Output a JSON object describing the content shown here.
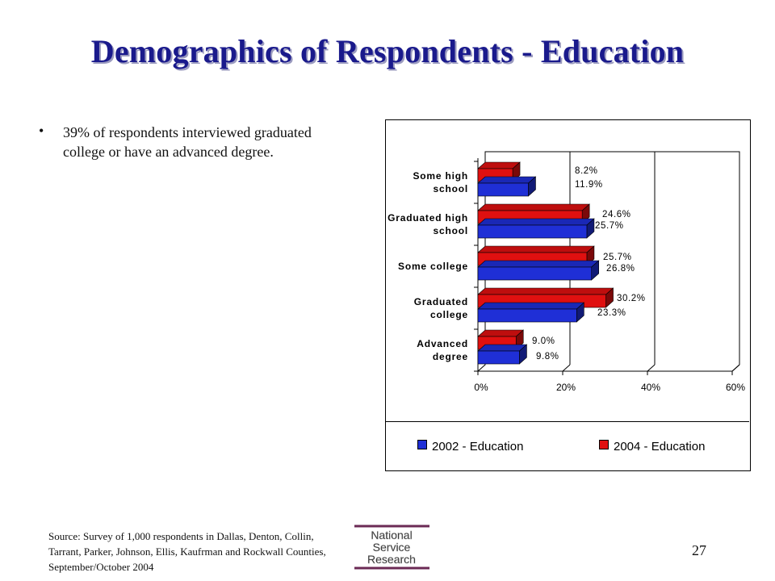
{
  "slide": {
    "title": "Demographics of Respondents - Education",
    "bullet": "39% of respondents interviewed graduated college or have an advanced degree.",
    "source": "Source: Survey of 1,000 respondents in Dallas, Denton, Collin, Tarrant, Parker, Johnson, Ellis, Kaufrman and Rockwall Counties, September/October 2004",
    "page_number": "27",
    "logo": {
      "line1": "National",
      "line2": "Service",
      "line3": "Research"
    }
  },
  "colors": {
    "title": "#1a1a8c",
    "series_2002": "#1f2fd6",
    "series_2004": "#e01010"
  },
  "chart_data": {
    "type": "bar",
    "orientation": "horizontal",
    "categories": [
      "Some high school",
      "Graduated high school",
      "Some college",
      "Graduated college",
      "Advanced degree"
    ],
    "series": [
      {
        "name": "2002 - Education",
        "values": [
          11.9,
          25.7,
          26.8,
          23.3,
          9.8
        ],
        "labels": [
          "11.9%",
          "25.7%",
          "26.8%",
          "23.3%",
          "9.8%"
        ],
        "color": "#1f2fd6"
      },
      {
        "name": "2004 - Education",
        "values": [
          8.2,
          24.6,
          25.7,
          30.2,
          9.0
        ],
        "labels": [
          "8.2%",
          "24.6%",
          "25.7%",
          "30.2%",
          "9.0%"
        ],
        "color": "#e01010"
      }
    ],
    "xlim": [
      0,
      60
    ],
    "x_ticks": [
      "0%",
      "20%",
      "40%",
      "60%"
    ],
    "grid": "vertical",
    "legend_position": "bottom"
  }
}
